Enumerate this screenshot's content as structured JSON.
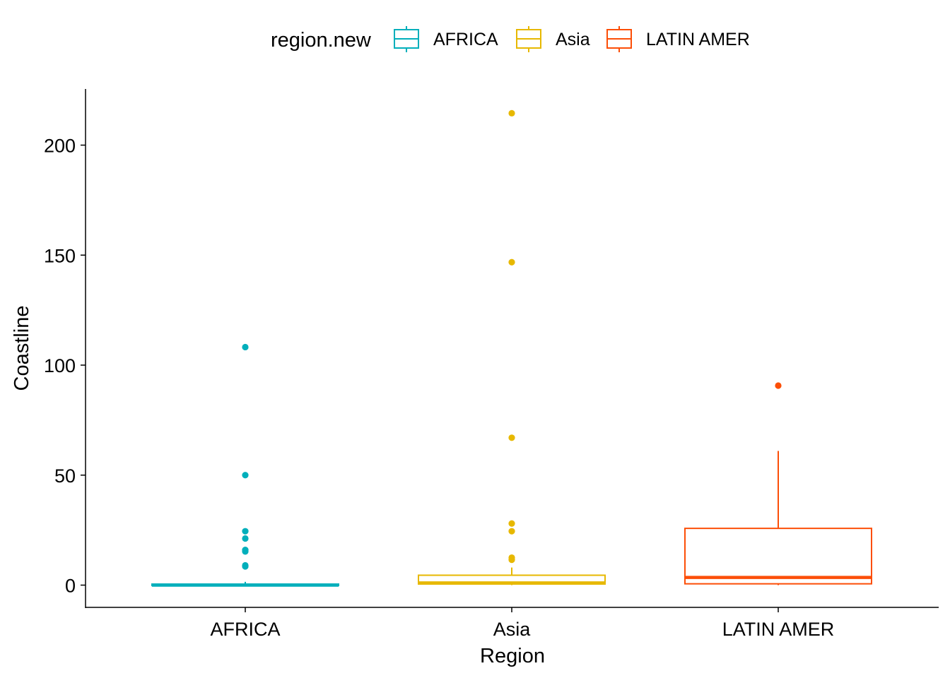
{
  "chart_data": {
    "type": "boxplot",
    "title": "",
    "xlabel": "Region",
    "ylabel": "Coastline",
    "ylim": [
      -10,
      225
    ],
    "yticks": [
      0,
      50,
      100,
      150,
      200
    ],
    "categories": [
      "AFRICA",
      "Asia",
      "LATIN AMER"
    ],
    "legend": {
      "title": "region.new",
      "placement": "top",
      "entries": [
        "AFRICA",
        "Asia",
        "LATIN AMER"
      ]
    },
    "grid": false,
    "colors": {
      "AFRICA": "#00AFBB",
      "Asia": "#E7B800",
      "LATIN AMER": "#FC4E07"
    },
    "series": [
      {
        "category": "AFRICA",
        "whisker_low": 0,
        "q1": 0,
        "median": 0,
        "q3": 0.3,
        "whisker_high": 1.5,
        "outliers": [
          108.2,
          50.0,
          24.5,
          21.2,
          16.0,
          15.3,
          9.0,
          8.5
        ]
      },
      {
        "category": "Asia",
        "whisker_low": 0,
        "q1": 0.5,
        "median": 1.0,
        "q3": 4.5,
        "whisker_high": 8.0,
        "outliers": [
          214.5,
          146.8,
          67.0,
          28.0,
          24.5,
          12.5,
          11.5
        ]
      },
      {
        "category": "LATIN AMER",
        "whisker_low": 0,
        "q1": 0.6,
        "median": 3.5,
        "q3": 25.8,
        "whisker_high": 61.0,
        "outliers": [
          90.7
        ]
      }
    ]
  }
}
